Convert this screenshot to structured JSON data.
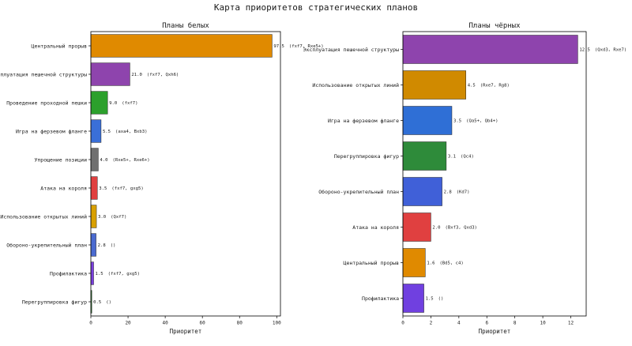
{
  "title": "Карта приоритетов стратегических планов",
  "chart_data": [
    {
      "type": "bar",
      "orientation": "horizontal",
      "title": "Планы белых",
      "xlabel": "Приоритет",
      "ylabel": "",
      "xlim": [
        0,
        102
      ],
      "xticks": [
        0,
        20,
        40,
        60,
        80,
        100
      ],
      "grid": false,
      "categories": [
        "Центральный прорыв",
        "Эксплуатация пешечной структуры",
        "Проведение проходной пешки",
        "Игра на ферзевом фланге",
        "Упрощение позиции",
        "Атака на короля",
        "Использование открытых линий",
        "Обороно-укрепительный план",
        "Профилактика",
        "Перегруппировка фигур"
      ],
      "values": [
        97.5,
        21.0,
        9.0,
        5.5,
        4.0,
        3.5,
        3.0,
        2.8,
        1.5,
        0.5
      ],
      "value_labels": [
        "97.5",
        "21.0",
        "9.0",
        "5.5",
        "4.0",
        "3.5",
        "3.0",
        "2.8",
        "1.5",
        "0.5"
      ],
      "annotations": [
        "(fxf7, Rxe5+)",
        "(fxf7, Qxh6)",
        "(fxf7)",
        "(axa4, Bxb3)",
        "(Rxe5+, Rxe6+)",
        "(fxf7, gxg5)",
        "(Qxf7)",
        "()",
        "(fxf7, gxg5)",
        "()"
      ],
      "colors": [
        "#e08a00",
        "#8e44ad",
        "#2ca02c",
        "#3a6fd8",
        "#707070",
        "#e04040",
        "#d9a000",
        "#4a6ad0",
        "#7b3fe0",
        "#3a8a3a"
      ]
    },
    {
      "type": "bar",
      "orientation": "horizontal",
      "title": "Планы чёрных",
      "xlabel": "Приоритет",
      "ylabel": "",
      "xlim": [
        0,
        13.1
      ],
      "xticks": [
        0,
        2,
        4,
        6,
        8,
        10,
        12
      ],
      "grid": false,
      "categories": [
        "Эксплуатация пешечной структуры",
        "Использование открытых линий",
        "Игра на ферзевом фланге",
        "Перегруппировка фигур",
        "Обороно-укрепительный план",
        "Атака на короля",
        "Центральный прорыв",
        "Профилактика"
      ],
      "values": [
        12.5,
        4.5,
        3.5,
        3.1,
        2.8,
        2.0,
        1.6,
        1.5
      ],
      "value_labels": [
        "12.5",
        "4.5",
        "3.5",
        "3.1",
        "2.8",
        "2.0",
        "1.6",
        "1.5"
      ],
      "annotations": [
        "(Qxd3, Rxe7)",
        "(Rxe7, Rg8)",
        "(Qa5+, Qb4+)",
        "(Qc4)",
        "(Kd7)",
        "(Bxf3, Qxd3)",
        "(Bd5, c4)",
        "()"
      ],
      "colors": [
        "#8e44ad",
        "#d08a00",
        "#2f6fd6",
        "#2e8b3a",
        "#4060d8",
        "#e04040",
        "#e08a00",
        "#7040e0"
      ]
    }
  ]
}
